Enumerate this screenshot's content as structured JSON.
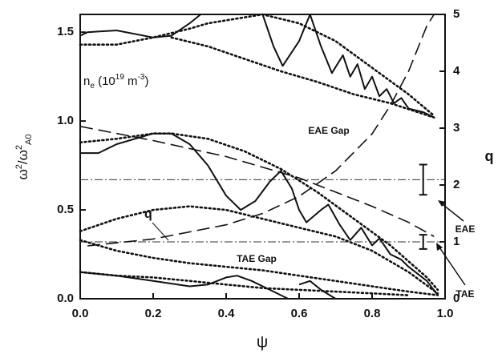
{
  "chart_data": {
    "type": "line",
    "x_label": "ψ",
    "y_label": {
      "parts": [
        "ω",
        "2",
        "/ω",
        "2",
        "A0"
      ]
    },
    "y2_label": "q",
    "xlim": [
      0,
      1
    ],
    "ylim": [
      0,
      1.6
    ],
    "y2lim": [
      0,
      5
    ],
    "xticks": [
      {
        "value": 0,
        "label": "0.0"
      },
      0.2,
      0.4,
      0.6,
      0.8,
      {
        "value": 1,
        "label": "1.0"
      }
    ],
    "yticks": [
      {
        "value": 0,
        "label": "0.0"
      },
      0.5,
      {
        "value": 1,
        "label": "1.0"
      },
      1.5
    ],
    "y2ticks": [
      0,
      1,
      2,
      3,
      4,
      5
    ],
    "color": "#111111",
    "series": [
      {
        "style": "solid",
        "x": [
          0,
          0.02,
          0.1,
          0.2,
          0.25,
          0.3,
          0.33
        ],
        "values": [
          1.48,
          1.5,
          1.51,
          1.47,
          1.48,
          1.55,
          1.6
        ]
      },
      {
        "style": "solid",
        "x": [
          0.5,
          0.53,
          0.555,
          0.6,
          0.63,
          0.66,
          0.69,
          0.72,
          0.74,
          0.76,
          0.78,
          0.8,
          0.82,
          0.84,
          0.86,
          0.88,
          0.9,
          0.94,
          0.97
        ],
        "values": [
          1.6,
          1.42,
          1.31,
          1.45,
          1.6,
          1.42,
          1.27,
          1.37,
          1.25,
          1.32,
          1.18,
          1.25,
          1.14,
          1.18,
          1.1,
          1.13,
          1.07,
          1.05,
          1.02
        ]
      },
      {
        "style": "solid",
        "x": [
          0,
          0.05,
          0.1,
          0.2,
          0.25,
          0.3,
          0.35,
          0.4,
          0.44,
          0.48,
          0.52,
          0.55,
          0.58,
          0.6,
          0.62,
          0.66,
          0.68,
          0.71,
          0.74,
          0.77,
          0.8,
          0.82,
          0.85,
          0.88,
          0.9,
          0.95,
          0.98
        ],
        "values": [
          0.82,
          0.82,
          0.87,
          0.93,
          0.93,
          0.87,
          0.75,
          0.58,
          0.5,
          0.55,
          0.66,
          0.72,
          0.62,
          0.5,
          0.43,
          0.5,
          0.53,
          0.42,
          0.33,
          0.4,
          0.3,
          0.34,
          0.25,
          0.22,
          0.18,
          0.1,
          0.02
        ]
      },
      {
        "style": "solid",
        "x": [
          0,
          0.1,
          0.2,
          0.3,
          0.35,
          0.4,
          0.43,
          0.47,
          0.52,
          0.57,
          0.585,
          0.6,
          0.63,
          0.66,
          0.7
        ],
        "values": [
          0.15,
          0.13,
          0.1,
          0.07,
          0.08,
          0.12,
          0.13,
          0.1,
          0.05,
          0.0,
          null,
          0.08,
          0.1,
          0.05,
          0.0
        ]
      },
      {
        "style": "dotted",
        "x": [
          0,
          0.1,
          0.2,
          0.3,
          0.35,
          0.5,
          0.6,
          0.7,
          0.8,
          0.9,
          0.97
        ],
        "values": [
          1.43,
          1.43,
          1.47,
          1.52,
          1.55,
          1.6,
          1.55,
          1.45,
          1.3,
          1.15,
          1.03
        ]
      },
      {
        "style": "dotted",
        "x": [
          0.25,
          0.35,
          0.45,
          0.55,
          0.65,
          0.75,
          0.85,
          0.97
        ],
        "values": [
          1.47,
          1.42,
          1.35,
          1.28,
          1.22,
          1.15,
          1.1,
          1.02
        ]
      },
      {
        "style": "dotted",
        "x": [
          0,
          0.1,
          0.2,
          0.25,
          0.35,
          0.45,
          0.55,
          0.65,
          0.75,
          0.85,
          0.95,
          0.98
        ],
        "values": [
          0.88,
          0.9,
          0.93,
          0.93,
          0.9,
          0.83,
          0.73,
          0.6,
          0.45,
          0.3,
          0.12,
          0.05
        ]
      },
      {
        "style": "dotted",
        "x": [
          0,
          0.1,
          0.2,
          0.3,
          0.4,
          0.5,
          0.6,
          0.7,
          0.8,
          0.9,
          0.98
        ],
        "values": [
          0.38,
          0.45,
          0.5,
          0.52,
          0.5,
          0.45,
          0.4,
          0.35,
          0.27,
          0.15,
          0.03
        ]
      },
      {
        "style": "dotted",
        "x": [
          0,
          0.1,
          0.2,
          0.3,
          0.4,
          0.5,
          0.6,
          0.7,
          0.8,
          0.9,
          0.98
        ],
        "values": [
          0.33,
          0.27,
          0.23,
          0.2,
          0.18,
          0.16,
          0.13,
          0.1,
          0.07,
          0.04,
          0.02
        ]
      },
      {
        "style": "dotted",
        "x": [
          0,
          0.1,
          0.2,
          0.3,
          0.4,
          0.5,
          0.6,
          0.7,
          0.8,
          0.9
        ],
        "values": [
          0.15,
          0.13,
          0.12,
          0.1,
          0.08,
          0.06,
          0.05,
          0.04,
          0.03,
          0.02
        ]
      },
      {
        "style": "dashed",
        "x": [
          0,
          0.2,
          0.4,
          0.6,
          0.8,
          0.9,
          0.97
        ],
        "values": [
          0.97,
          0.89,
          0.8,
          0.68,
          0.52,
          0.43,
          0.35
        ]
      },
      {
        "style": "dashed",
        "axis": "y2",
        "x": [
          0.02,
          0.2,
          0.4,
          0.5,
          0.6,
          0.7,
          0.8,
          0.85,
          0.9,
          0.95,
          0.97
        ],
        "values": [
          0.93,
          1.05,
          1.3,
          1.5,
          1.8,
          2.25,
          2.9,
          3.4,
          4.0,
          4.8,
          5.0
        ]
      }
    ],
    "reference_lines": [
      0.67,
      0.32
    ],
    "error_bars": [
      {
        "x": 0.94,
        "value": 0.67,
        "error": 0.085
      },
      {
        "x": 0.94,
        "value": 0.32,
        "error": 0.04
      }
    ],
    "annotations": {
      "ne_label": [
        "n",
        "e",
        " (10",
        "19",
        " m",
        "-3",
        ")"
      ],
      "q_label": "q",
      "eae_gap": "EAE Gap",
      "tae_gap": "TAE Gap",
      "eae": "EAE",
      "tae": "TAE"
    }
  }
}
